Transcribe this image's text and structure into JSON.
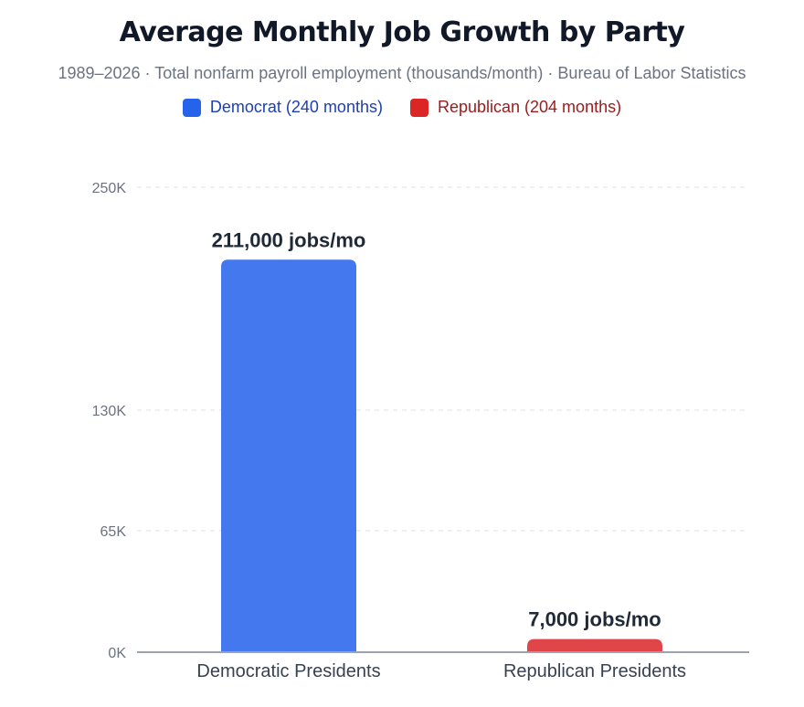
{
  "chart_data": {
    "type": "bar",
    "title": "Average Monthly Job Growth by Party",
    "subtitle": "1989–2026 · Total nonfarm payroll employment (thousands/month) · Bureau of Labor Statistics",
    "categories": [
      "Democratic Presidents",
      "Republican Presidents"
    ],
    "values": [
      211,
      7
    ],
    "data_labels": [
      "211,000 jobs/mo",
      "7,000 jobs/mo"
    ],
    "colors": [
      "#4478ee",
      "#e0454a"
    ],
    "legend": [
      {
        "label": "Democrat (240 months)",
        "color": "#2563eb",
        "text_color": "#1e40af"
      },
      {
        "label": "Republican (204 months)",
        "color": "#dc2626",
        "text_color": "#991b1b"
      }
    ],
    "yticks": [
      0,
      65,
      130,
      250
    ],
    "ytick_labels": [
      "0K",
      "65K",
      "130K",
      "250K"
    ],
    "ylim": [
      0,
      250
    ],
    "grid": true,
    "xlabel": "",
    "ylabel": ""
  }
}
